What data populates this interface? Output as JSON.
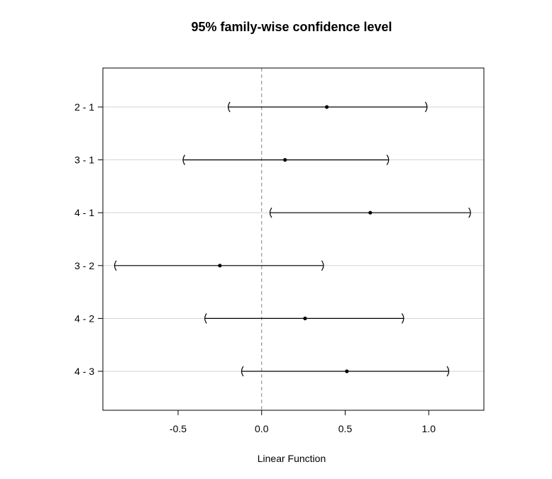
{
  "chart_data": {
    "type": "interval",
    "title": "95% family-wise confidence level",
    "xlabel": "Linear Function",
    "ylabel": "",
    "xlim": [
      -0.95,
      1.33
    ],
    "x_ticks": [
      -0.5,
      0.0,
      0.5,
      1.0
    ],
    "x_tick_labels": [
      "-0.5",
      "0.0",
      "0.5",
      "1.0"
    ],
    "reference_line": 0,
    "grid": "horizontal",
    "comparisons": [
      {
        "label": "2 - 1",
        "lwr": -0.2,
        "estimate": 0.39,
        "upr": 0.99
      },
      {
        "label": "3 - 1",
        "lwr": -0.47,
        "estimate": 0.14,
        "upr": 0.76
      },
      {
        "label": "4 - 1",
        "lwr": 0.05,
        "estimate": 0.65,
        "upr": 1.25
      },
      {
        "label": "3 - 2",
        "lwr": -0.88,
        "estimate": -0.25,
        "upr": 0.37
      },
      {
        "label": "4 - 2",
        "lwr": -0.34,
        "estimate": 0.26,
        "upr": 0.85
      },
      {
        "label": "4 - 3",
        "lwr": -0.12,
        "estimate": 0.51,
        "upr": 1.12
      }
    ],
    "colors": {
      "interval": "#000000",
      "grid": "#d3d3d3",
      "reference": "#808080",
      "frame": "#000000"
    }
  }
}
